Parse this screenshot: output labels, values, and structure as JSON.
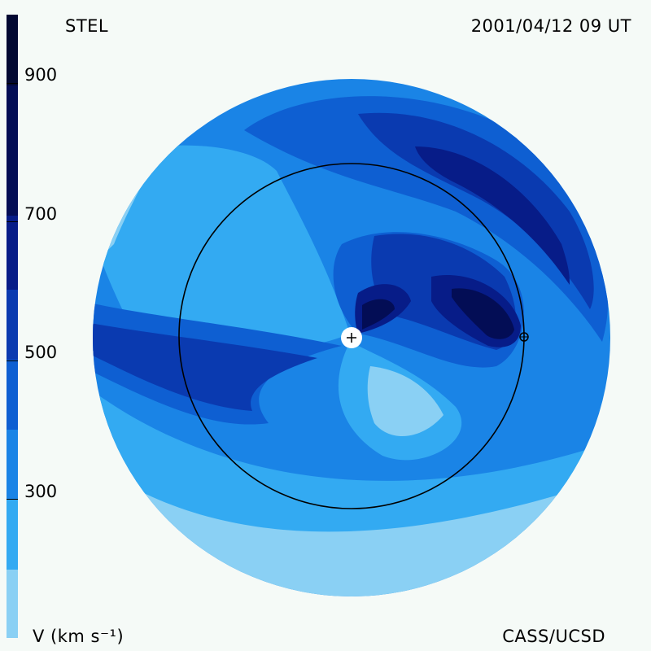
{
  "header": {
    "source": "STEL",
    "timestamp": "2001/04/12 09 UT"
  },
  "footer": {
    "unit_label": "V (km s⁻¹)",
    "credit": "CASS/UCSD"
  },
  "colorbar": {
    "ticks": [
      "900",
      "700",
      "500",
      "300"
    ],
    "levels": [
      {
        "min": 200,
        "color": "#8ad0f4"
      },
      {
        "min": 300,
        "color": "#33aaf2"
      },
      {
        "min": 400,
        "color": "#1a84e6"
      },
      {
        "min": 500,
        "color": "#0e5fd2"
      },
      {
        "min": 600,
        "color": "#0a3ab0"
      },
      {
        "min": 700,
        "color": "#071c88"
      },
      {
        "min": 800,
        "color": "#030d55"
      },
      {
        "min": 900,
        "color": "#020832"
      }
    ]
  },
  "markers": {
    "sun": "plus-marker",
    "earth": "earth-marker"
  }
}
